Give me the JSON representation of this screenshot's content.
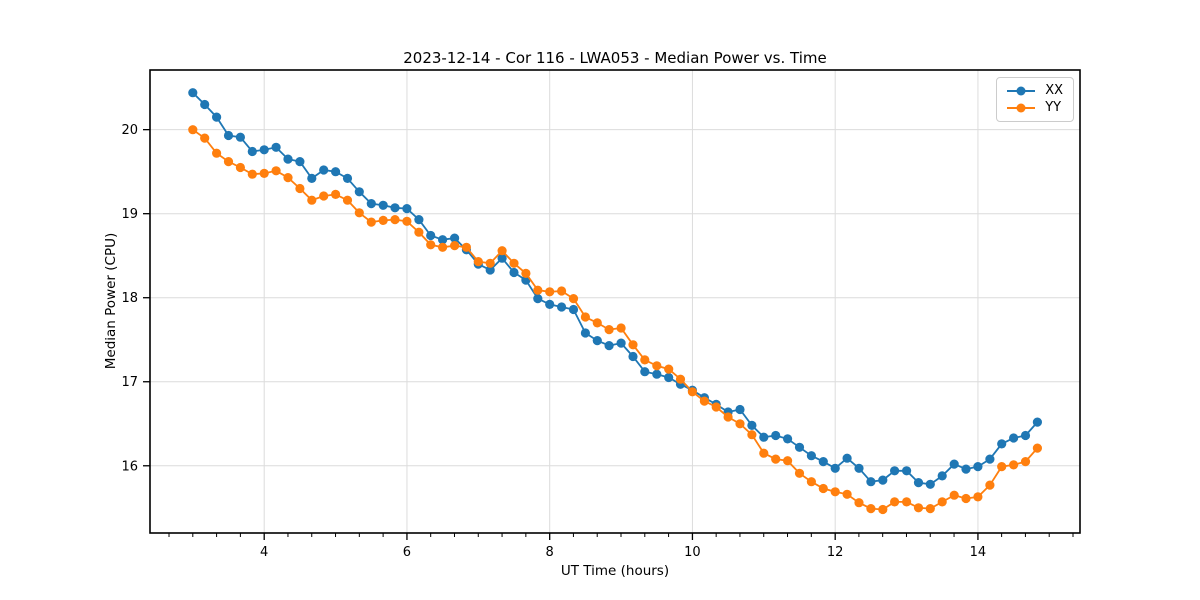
{
  "title": "2023-12-14 - Cor 116 - LWA053 - Median Power vs. Time",
  "chart_data": {
    "type": "line",
    "title": "2023-12-14 - Cor 116 - LWA053 - Median Power vs. Time",
    "xlabel": "UT Time (hours)",
    "ylabel": "Median Power (CPU)",
    "xlim": [
      2.4,
      15.43
    ],
    "ylim": [
      15.2,
      20.71
    ],
    "x_ticks": [
      4,
      6,
      8,
      10,
      12,
      14
    ],
    "y_ticks": [
      16,
      17,
      18,
      19,
      20
    ],
    "x_minor_tick_step": 0.3333,
    "grid": true,
    "grid_color": "#dcdcdc",
    "legend_position": "upper right",
    "marker": "circle",
    "x": [
      3.0,
      3.167,
      3.333,
      3.5,
      3.667,
      3.833,
      4.0,
      4.167,
      4.333,
      4.5,
      4.667,
      4.833,
      5.0,
      5.167,
      5.333,
      5.5,
      5.667,
      5.833,
      6.0,
      6.167,
      6.333,
      6.5,
      6.667,
      6.833,
      7.0,
      7.167,
      7.333,
      7.5,
      7.667,
      7.833,
      8.0,
      8.167,
      8.333,
      8.5,
      8.667,
      8.833,
      9.0,
      9.167,
      9.333,
      9.5,
      9.667,
      9.833,
      10.0,
      10.167,
      10.333,
      10.5,
      10.667,
      10.833,
      11.0,
      11.167,
      11.333,
      11.5,
      11.667,
      11.833,
      12.0,
      12.167,
      12.333,
      12.5,
      12.667,
      12.833,
      13.0,
      13.167,
      13.333,
      13.5,
      13.667,
      13.833,
      14.0,
      14.167,
      14.333,
      14.5,
      14.667,
      14.833
    ],
    "series": [
      {
        "name": "XX",
        "color": "#1f77b4",
        "values": [
          20.44,
          20.3,
          20.15,
          19.93,
          19.91,
          19.74,
          19.76,
          19.79,
          19.65,
          19.62,
          19.42,
          19.52,
          19.5,
          19.42,
          19.26,
          19.12,
          19.1,
          19.07,
          19.06,
          18.93,
          18.74,
          18.69,
          18.71,
          18.57,
          18.4,
          18.33,
          18.47,
          18.3,
          18.21,
          17.99,
          17.92,
          17.89,
          17.86,
          17.58,
          17.49,
          17.43,
          17.46,
          17.3,
          17.12,
          17.09,
          17.05,
          16.97,
          16.9,
          16.81,
          16.73,
          16.64,
          16.67,
          16.48,
          16.34,
          16.36,
          16.32,
          16.22,
          16.12,
          16.05,
          15.97,
          16.09,
          15.97,
          15.81,
          15.83,
          15.94,
          15.94,
          15.8,
          15.78,
          15.88,
          16.02,
          15.96,
          15.99,
          16.08,
          16.26,
          16.33,
          16.36,
          16.52
        ]
      },
      {
        "name": "YY",
        "color": "#ff7f0e",
        "values": [
          20.0,
          19.9,
          19.72,
          19.62,
          19.55,
          19.47,
          19.48,
          19.51,
          19.43,
          19.3,
          19.16,
          19.21,
          19.23,
          19.16,
          19.01,
          18.9,
          18.92,
          18.93,
          18.91,
          18.78,
          18.63,
          18.6,
          18.62,
          18.6,
          18.43,
          18.41,
          18.56,
          18.41,
          18.29,
          18.09,
          18.07,
          18.08,
          17.99,
          17.77,
          17.7,
          17.62,
          17.64,
          17.44,
          17.26,
          17.19,
          17.15,
          17.03,
          16.88,
          16.77,
          16.7,
          16.58,
          16.5,
          16.37,
          16.15,
          16.08,
          16.06,
          15.91,
          15.81,
          15.73,
          15.69,
          15.66,
          15.56,
          15.49,
          15.48,
          15.57,
          15.57,
          15.5,
          15.49,
          15.57,
          15.65,
          15.61,
          15.63,
          15.77,
          15.99,
          16.01,
          16.05,
          16.21
        ]
      }
    ]
  }
}
